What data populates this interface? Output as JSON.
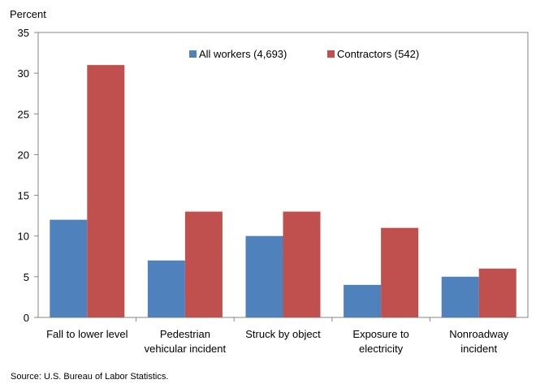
{
  "chart_data": {
    "type": "bar",
    "ylabel": "Percent",
    "ylim": [
      0,
      35
    ],
    "yticks": [
      0,
      5,
      10,
      15,
      20,
      25,
      30,
      35
    ],
    "grid": false,
    "legend_position": "top-right",
    "categories": [
      [
        "Fall to lower level"
      ],
      [
        "Pedestrian",
        "vehicular incident"
      ],
      [
        "Struck by object"
      ],
      [
        "Exposure to",
        "electricity"
      ],
      [
        "Nonroadway",
        "incident"
      ]
    ],
    "series": [
      {
        "name": "All workers (4,693)",
        "color": "#4f81bd",
        "values": [
          12,
          7,
          10,
          4,
          5
        ]
      },
      {
        "name": "Contractors (542)",
        "color": "#c0504d",
        "values": [
          31,
          13,
          13,
          11,
          6
        ]
      }
    ],
    "source": "Source:  U.S. Bureau of Labor Statistics."
  }
}
